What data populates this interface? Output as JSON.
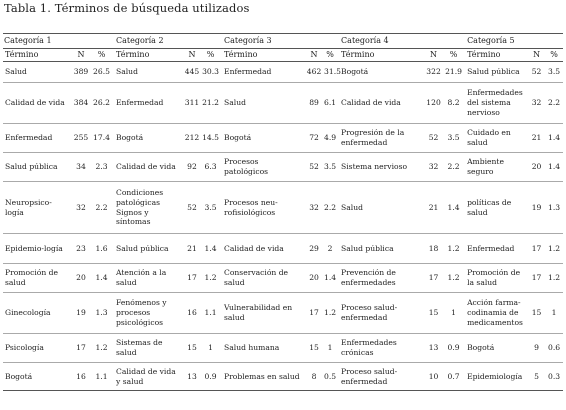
{
  "caption": "Tabla 1. Términos de búsqueda utilizados",
  "categories": [
    "Categoría 1",
    "Categoría 2",
    "Categoría 3",
    "Categoría 4",
    "Categoría 5"
  ],
  "col_headers": {
    "term": "Término",
    "n": "N",
    "pct": "%"
  },
  "rows": [
    {
      "h": 21,
      "cells": [
        [
          "Salud",
          "389",
          "26.5"
        ],
        [
          "Salud",
          "445",
          "30.3"
        ],
        [
          "Enfermedad",
          "462",
          "31.5"
        ],
        [
          "Bogotá",
          "322",
          "21.9"
        ],
        [
          "Salud pública",
          "52",
          "3.5"
        ]
      ]
    },
    {
      "h": 41,
      "cells": [
        [
          "Calidad de vida",
          "384",
          "26.2"
        ],
        [
          "Enfermedad",
          "311",
          "21.2"
        ],
        [
          "Salud",
          "89",
          "6.1"
        ],
        [
          "Calidad de vida",
          "120",
          "8.2"
        ],
        [
          "Enfermedades del sistema nervioso",
          "32",
          "2.2"
        ]
      ]
    },
    {
      "h": 29,
      "cells": [
        [
          "Enfermedad",
          "255",
          "17.4"
        ],
        [
          "Bogotá",
          "212",
          "14.5"
        ],
        [
          "Bogotá",
          "72",
          "4.9"
        ],
        [
          "Progresión de la enfermedad",
          "52",
          "3.5"
        ],
        [
          "Cuidado en salud",
          "21",
          "1.4"
        ]
      ]
    },
    {
      "h": 29,
      "cells": [
        [
          "Salud pública",
          "34",
          "2.3"
        ],
        [
          "Calidad de vida",
          "92",
          "6.3"
        ],
        [
          "Procesos patológicos",
          "52",
          "3.5"
        ],
        [
          "Sistema nervioso",
          "32",
          "2.2"
        ],
        [
          "Ambiente seguro",
          "20",
          "1.4"
        ]
      ]
    },
    {
      "h": 52,
      "cells": [
        [
          "Neuropsico-logía",
          "32",
          "2.2"
        ],
        [
          "Condiciones patológicas Signos y síntomas",
          "52",
          "3.5"
        ],
        [
          "Procesos neu-rofisiológicos",
          "32",
          "2.2"
        ],
        [
          "Salud",
          "21",
          "1.4"
        ],
        [
          "políticas de salud",
          "19",
          "1.3"
        ]
      ]
    },
    {
      "h": 30,
      "cells": [
        [
          "Epidemio-logía",
          "23",
          "1.6"
        ],
        [
          "Salud pública",
          "21",
          "1.4"
        ],
        [
          "Calidad de vida",
          "29",
          "2"
        ],
        [
          "Salud pública",
          "18",
          "1.2"
        ],
        [
          "Enfermedad",
          "17",
          "1.2"
        ]
      ]
    },
    {
      "h": 29,
      "cells": [
        [
          "Promoción de salud",
          "20",
          "1.4"
        ],
        [
          "Atención a la salud",
          "17",
          "1.2"
        ],
        [
          "Conservación de salud",
          "20",
          "1.4"
        ],
        [
          "Prevención de enfermedades",
          "17",
          "1.2"
        ],
        [
          "Promoción de la salud",
          "17",
          "1.2"
        ]
      ]
    },
    {
      "h": 41,
      "cells": [
        [
          "Ginecología",
          "19",
          "1.3"
        ],
        [
          "Fenómenos y procesos psicológicos",
          "16",
          "1.1"
        ],
        [
          "Vulnerabilidad en salud",
          "17",
          "1.2"
        ],
        [
          "Proceso salud-enfermedad",
          "15",
          "1"
        ],
        [
          "Acción farma-codinamia de medicamentos",
          "15",
          "1"
        ]
      ]
    },
    {
      "h": 29,
      "cells": [
        [
          "Psicología",
          "17",
          "1.2"
        ],
        [
          "Sistemas de salud",
          "15",
          "1"
        ],
        [
          "Salud humana",
          "15",
          "1"
        ],
        [
          "Enfermedades crónicas",
          "13",
          "0.9"
        ],
        [
          "Bogotá",
          "9",
          "0.6"
        ]
      ]
    },
    {
      "h": 28,
      "cells": [
        [
          "Bogotá",
          "16",
          "1.1"
        ],
        [
          "Calidad de vida y salud",
          "13",
          "0.9"
        ],
        [
          "Problemas en salud",
          "8",
          "0.5"
        ],
        [
          "Proceso salud-enfermedad",
          "10",
          "0.7"
        ],
        [
          "Epidemiología",
          "5",
          "0.3"
        ]
      ]
    }
  ]
}
